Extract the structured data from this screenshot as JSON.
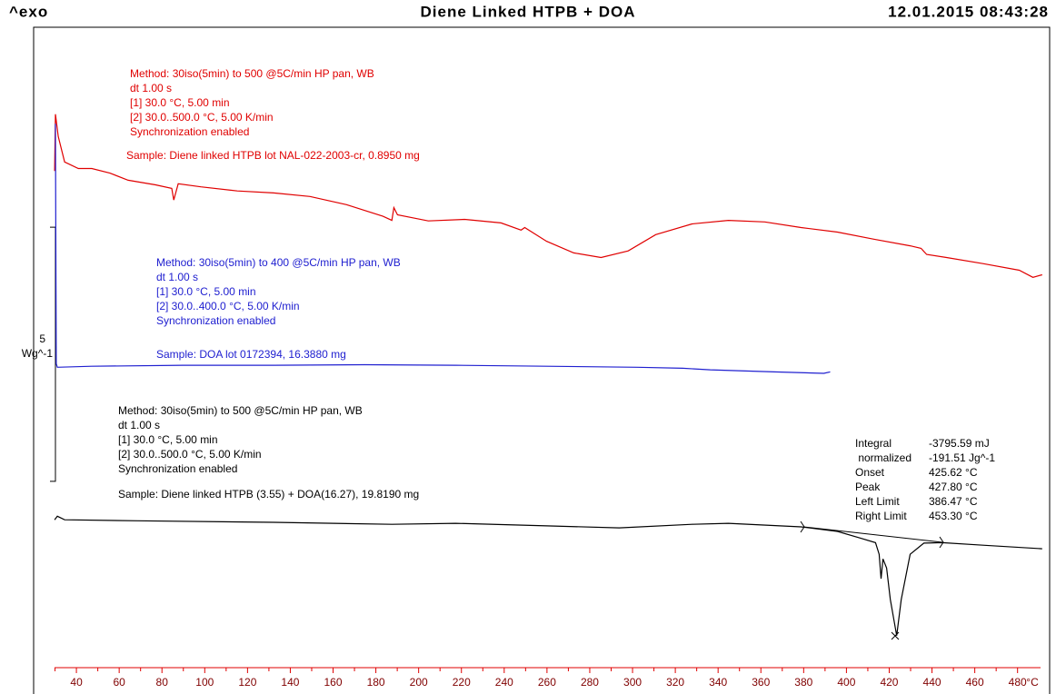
{
  "chart_data": {
    "type": "line",
    "header_left": "^exo",
    "title": "Diene Linked  HTPB + DOA",
    "timestamp": "12.01.2015 08:43:28",
    "x_label": "°C",
    "xlim": [
      20,
      495
    ],
    "xticks": [
      40,
      60,
      80,
      100,
      120,
      140,
      160,
      180,
      200,
      220,
      240,
      260,
      280,
      300,
      320,
      340,
      360,
      380,
      400,
      420,
      440,
      460,
      480
    ],
    "ylim": [
      0,
      12.6
    ],
    "scale_bar": {
      "value": 5,
      "unit": "Wg^-1"
    },
    "series": [
      {
        "color": "#e00000",
        "x": [
          29.8,
          30.2,
          31.5,
          34.5,
          40.9,
          47.2,
          55.7,
          64.2,
          77.0,
          84.6,
          85.5,
          87.6,
          98.2,
          115.2,
          132.2,
          149.2,
          166.3,
          183.3,
          187.5,
          188.4,
          190.1,
          204.5,
          221.5,
          238.5,
          247.9,
          249.6,
          259.8,
          272.5,
          285.3,
          298.0,
          310.8,
          327.8,
          344.8,
          361.8,
          378.8,
          395.8,
          412.8,
          429.8,
          434.9,
          437.5,
          446.8,
          463.8,
          480.8,
          487.2,
          491.5
        ],
        "values": [
          9.77,
          10.89,
          10.45,
          9.95,
          9.82,
          9.82,
          9.73,
          9.59,
          9.5,
          9.43,
          9.2,
          9.52,
          9.46,
          9.38,
          9.34,
          9.27,
          9.11,
          8.88,
          8.8,
          9.05,
          8.91,
          8.79,
          8.82,
          8.75,
          8.61,
          8.66,
          8.39,
          8.16,
          8.07,
          8.2,
          8.52,
          8.73,
          8.8,
          8.77,
          8.66,
          8.57,
          8.43,
          8.3,
          8.25,
          8.13,
          8.07,
          7.95,
          7.82,
          7.68,
          7.73
        ],
        "notes": [
          "Method: 30iso(5min) to 500 @5C/min  HP pan, WB",
          "dt 1.00 s",
          "[1] 30.0 °C, 5.00 min",
          "[2] 30.0..500.0 °C, 5.00 K/min",
          "Synchronization enabled"
        ],
        "sample": "Sample: Diene linked HTPB lot NAL-022-2003-cr, 0.8950 mg"
      },
      {
        "color": "#2020d0",
        "x": [
          30.2,
          30.6,
          31.1,
          47.2,
          89.7,
          132.2,
          174.8,
          217.3,
          259.8,
          302.3,
          323.5,
          336.3,
          366.1,
          389.4,
          392.4
        ],
        "values": [
          10.7,
          5.98,
          5.91,
          5.93,
          5.95,
          5.95,
          5.96,
          5.95,
          5.93,
          5.91,
          5.89,
          5.86,
          5.82,
          5.79,
          5.82
        ],
        "notes": [
          "Method: 30iso(5min) to 400 @5C/min  HP pan, WB",
          "dt 1.00 s",
          "[1] 30.0 °C, 5.00 min",
          "[2] 30.0..400.0 °C, 5.00 K/min",
          "Synchronization enabled"
        ],
        "sample": "Sample: DOA lot 0172394, 16.3880 mg"
      },
      {
        "color": "#000000",
        "x": [
          29.8,
          31.1,
          34.5,
          68.5,
          132.2,
          187.5,
          217.3,
          259.8,
          293.8,
          327.8,
          344.8,
          378.8,
          395.8,
          406.4,
          413.6,
          415.3,
          416.2,
          417.1,
          418.8,
          420.5,
          423.5,
          425.6,
          429.8,
          436.2,
          444.7,
          463.8,
          491.5
        ],
        "values": [
          2.91,
          2.98,
          2.91,
          2.89,
          2.86,
          2.82,
          2.84,
          2.79,
          2.75,
          2.82,
          2.84,
          2.77,
          2.68,
          2.55,
          2.46,
          2.23,
          1.75,
          2.14,
          1.96,
          1.34,
          0.63,
          1.34,
          2.23,
          2.45,
          2.46,
          2.41,
          2.34
        ],
        "notes": [
          "Method: 30iso(5min) to 500 @5C/min  HP pan, WB",
          "dt 1.00 s",
          "[1] 30.0 °C, 5.00 min",
          "[2] 30.0..500.0 °C, 5.00 K/min",
          "Synchronization enabled"
        ],
        "sample": "Sample: Diene linked HTPB (3.55) + DOA(16.27), 19.8190 mg"
      }
    ],
    "results": [
      [
        "Integral",
        "-3795.59 mJ"
      ],
      [
        " normalized",
        "-191.51 Jg^-1"
      ],
      [
        "Onset",
        "425.62 °C"
      ],
      [
        "Peak",
        "427.80 °C"
      ],
      [
        "Left Limit",
        "386.47 °C"
      ],
      [
        "Right Limit",
        "453.30 °C"
      ]
    ]
  }
}
